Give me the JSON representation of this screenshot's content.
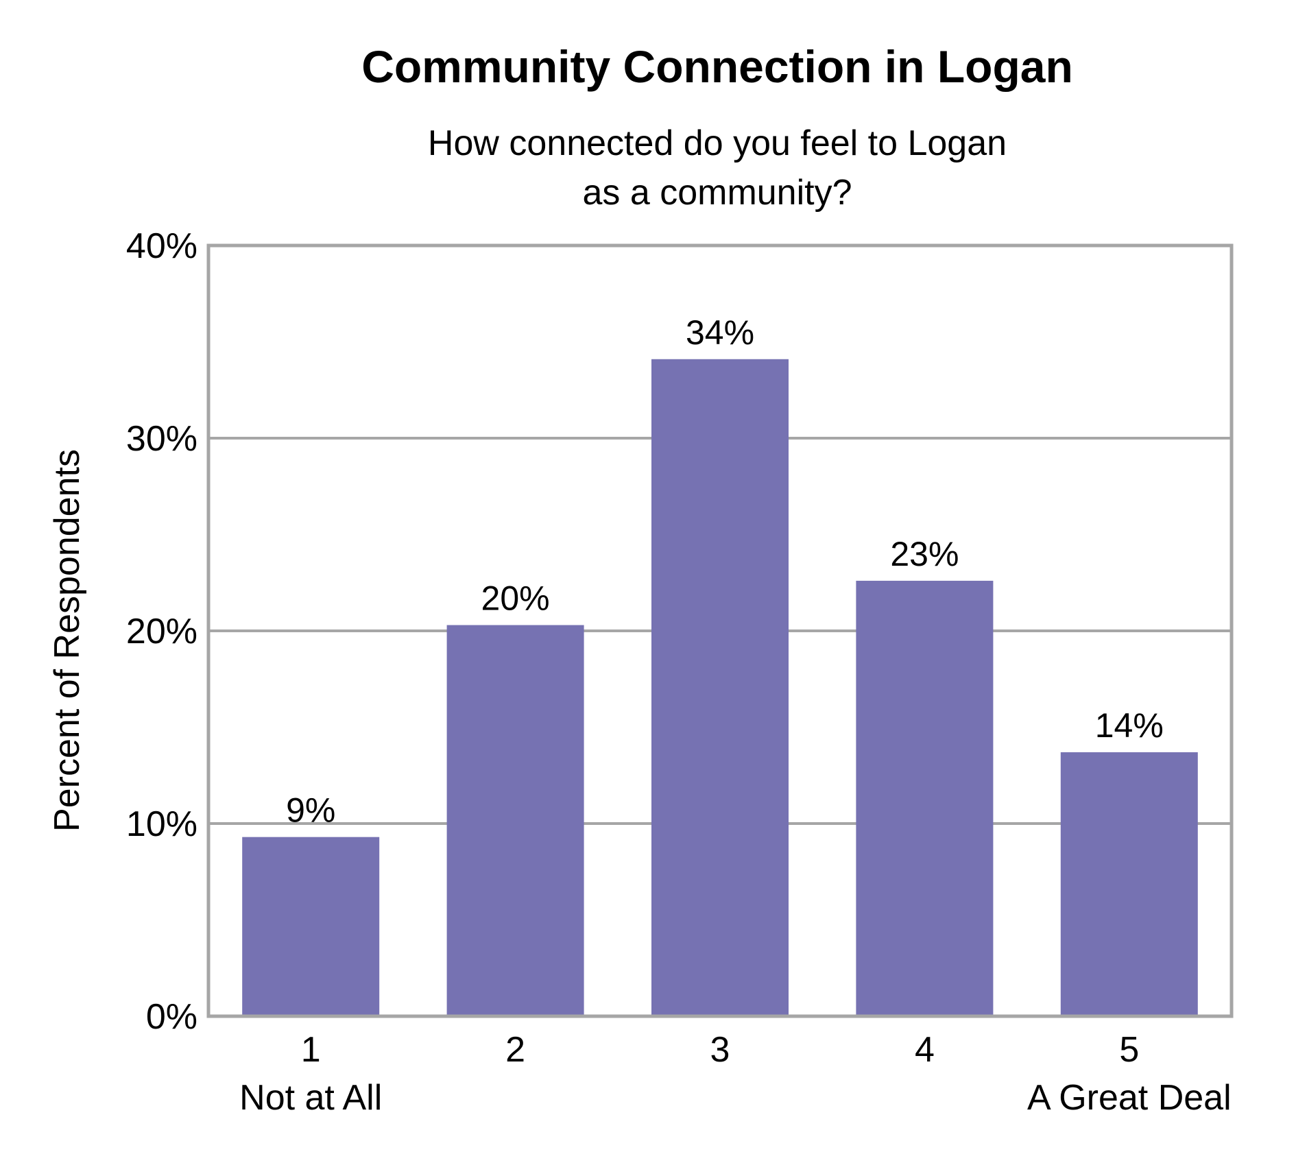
{
  "chart_data": {
    "type": "bar",
    "title": "Community Connection in Logan",
    "subtitle_lines": [
      "How connected do you feel to Logan",
      "as a community?"
    ],
    "ylabel": "Percent of Respondents",
    "xlabel": "",
    "categories": [
      "1",
      "2",
      "3",
      "4",
      "5"
    ],
    "category_sublabels": [
      "Not at All",
      "",
      "",
      "",
      "A Great Deal"
    ],
    "values": [
      9.3,
      20.3,
      34.1,
      22.6,
      13.7
    ],
    "data_labels": [
      "9%",
      "20%",
      "34%",
      "23%",
      "14%"
    ],
    "ylim": [
      0,
      40
    ],
    "yticks": [
      0,
      10,
      20,
      30,
      40
    ],
    "ytick_labels": [
      "0%",
      "10%",
      "20%",
      "30%",
      "40%"
    ],
    "grid": true,
    "legend": "none",
    "bar_color": "#7672b2",
    "grid_color": "#a6a6a6",
    "frame_color": "#a6a6a6"
  }
}
